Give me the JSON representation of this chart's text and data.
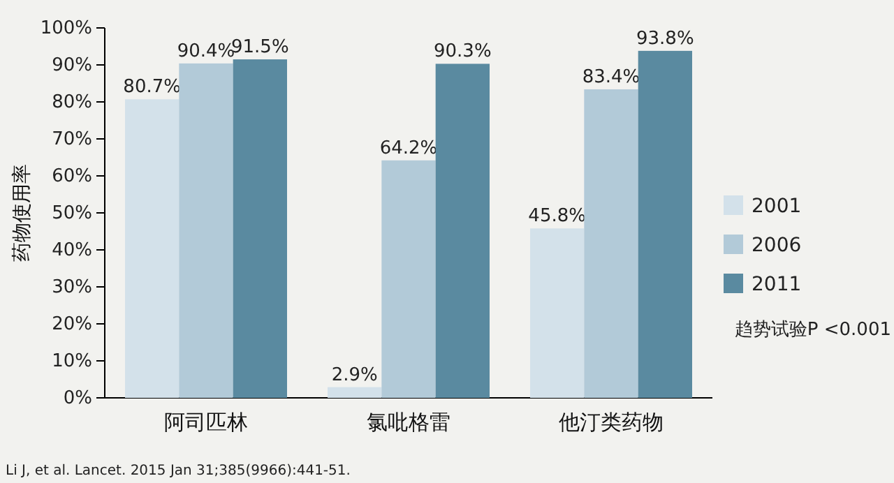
{
  "chart_data": {
    "type": "bar",
    "ylabel": "药物使用率",
    "categories": [
      "阿司匹林",
      "氯吡格雷",
      "他汀类药物"
    ],
    "series": [
      {
        "name": "2001",
        "color": "#d3e1ea",
        "values": [
          80.7,
          2.9,
          45.8
        ],
        "value_labels": [
          "80.7%",
          "2.9%",
          "45.8%"
        ]
      },
      {
        "name": "2006",
        "color": "#b2cad8",
        "values": [
          90.4,
          64.2,
          83.4
        ],
        "value_labels": [
          "90.4%",
          "64.2%",
          "83.4%"
        ]
      },
      {
        "name": "2011",
        "color": "#5a8aa0",
        "values": [
          91.5,
          90.3,
          93.8
        ],
        "value_labels": [
          "91.5%",
          "90.3%",
          "93.8%"
        ]
      }
    ],
    "ylim": [
      0,
      100
    ],
    "yticks": [
      {
        "value": 0,
        "label": "0%"
      },
      {
        "value": 10,
        "label": "10%"
      },
      {
        "value": 20,
        "label": "20%"
      },
      {
        "value": 30,
        "label": "30%"
      },
      {
        "value": 40,
        "label": "40%"
      },
      {
        "value": 50,
        "label": "50%"
      },
      {
        "value": 60,
        "label": "60%"
      },
      {
        "value": 70,
        "label": "70%"
      },
      {
        "value": 80,
        "label": "80%"
      },
      {
        "value": 90,
        "label": "90%"
      },
      {
        "value": 100,
        "label": "100%"
      }
    ],
    "legend": "right",
    "grid": false,
    "annotations": [
      "趋势试验P <0.001",
      "Li J,  et al. Lancet. 2015 Jan 31;385(9966):441-51."
    ]
  }
}
